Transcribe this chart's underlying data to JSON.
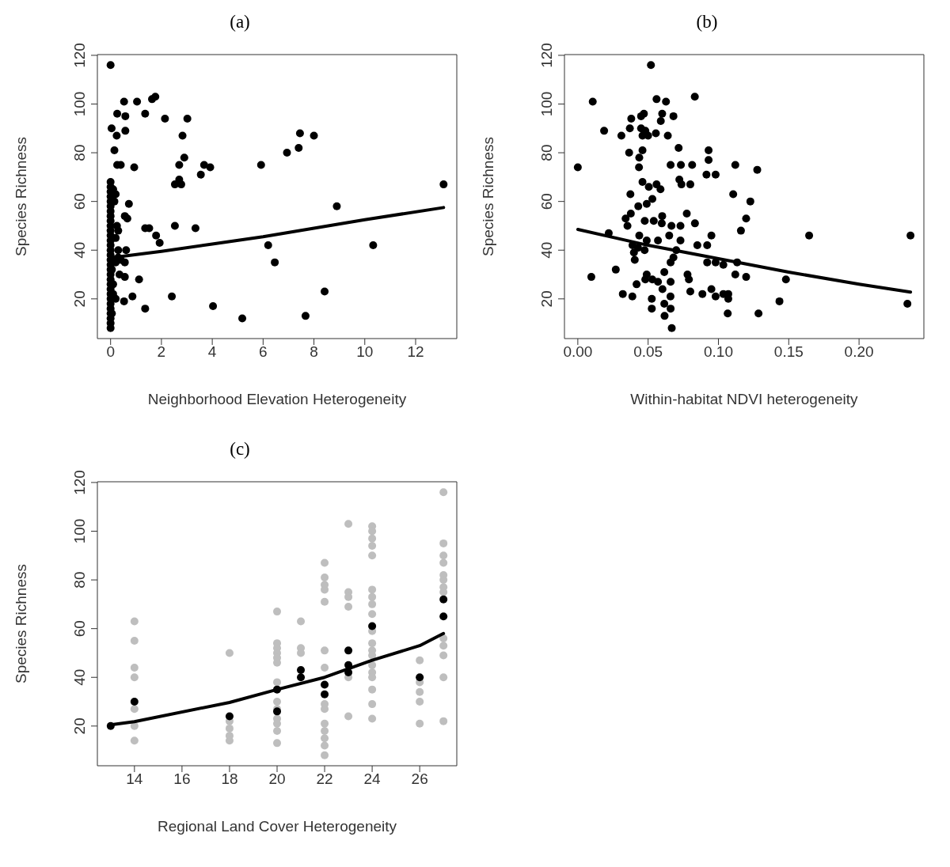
{
  "chart_data": [
    {
      "type": "scatter",
      "title": "(a)",
      "xlabel": "Neighborhood Elevation Heterogeneity",
      "ylabel": "Species Richness",
      "xlim": [
        -0.52,
        13.62
      ],
      "ylim": [
        3.7,
        120.3
      ],
      "xticks": [
        0,
        2,
        4,
        6,
        8,
        10,
        12
      ],
      "yticks": [
        20,
        40,
        60,
        80,
        100,
        120
      ],
      "marker": "circle",
      "series": [
        {
          "color": "#000000",
          "x": [
            0,
            0.53,
            1.04,
            1.63,
            1.76,
            1.36,
            0.26,
            0.58,
            2.14,
            3.02,
            0.04,
            0.58,
            0.24,
            2.83,
            0.15,
            7.45,
            8.0,
            7.4,
            6.94,
            2.9,
            0.26,
            0.4,
            0.93,
            2.7,
            3.68,
            3.92,
            3.55,
            5.92,
            2.53,
            2.7,
            2.78,
            13.1,
            0,
            0.72,
            8.9,
            0.56,
            0.66,
            2.53,
            1.36,
            1.52,
            3.34,
            1.79,
            1.93,
            6.2,
            10.33,
            6.46,
            0.61,
            0.56,
            0.56,
            1.12,
            0.86,
            2.41,
            8.42,
            0.53,
            1.36,
            4.03,
            5.18,
            7.67,
            0,
            0,
            0,
            0,
            0,
            0,
            0,
            0,
            0,
            0,
            0,
            0,
            0,
            0,
            0,
            0,
            0,
            0,
            0,
            0,
            0,
            0,
            0,
            0,
            0,
            0,
            0,
            0,
            0,
            0,
            0.1,
            0.2,
            0.15,
            0.3,
            0.25,
            0.2,
            0.3,
            0.2,
            0.35,
            0.1,
            0.2,
            0.05,
            0.3,
            0.4,
            0.1,
            0.05
          ],
          "values": [
            116,
            101,
            101,
            102,
            103,
            96,
            96,
            95,
            94,
            94,
            90,
            89,
            87,
            87,
            81,
            88,
            87,
            82,
            80,
            78,
            75,
            75,
            74,
            75,
            75,
            74,
            71,
            75,
            67,
            69,
            67,
            67,
            68,
            59,
            58,
            54,
            53,
            50,
            49,
            49,
            49,
            46,
            43,
            42,
            42,
            35,
            40,
            35,
            29,
            28,
            21,
            21,
            23,
            19,
            16,
            17,
            12,
            13,
            8,
            10,
            12,
            14,
            16,
            18,
            20,
            22,
            24,
            26,
            28,
            30,
            32,
            34,
            36,
            38,
            40,
            42,
            44,
            46,
            48,
            50,
            52,
            54,
            56,
            58,
            60,
            62,
            64,
            66,
            65,
            63,
            60,
            48,
            50,
            45,
            40,
            35,
            30,
            22,
            20,
            14,
            37,
            36,
            26,
            32
          ]
        },
        {
          "type": "line",
          "marker": "none",
          "color": "#000000",
          "x": [
            0.1,
            2,
            4,
            6,
            8,
            10,
            13.1
          ],
          "values": [
            37,
            39.5,
            42.5,
            45.5,
            49,
            52.5,
            57.5
          ]
        }
      ]
    },
    {
      "type": "scatter",
      "title": "(b)",
      "xlabel": "Within-habitat NDVI heterogeneity",
      "ylabel": "Species Richness",
      "xlim": [
        -0.0095,
        0.2461
      ],
      "ylim": [
        3.7,
        120.3
      ],
      "xticks": [
        {
          "value": 0,
          "label": "0.00"
        },
        {
          "value": 0.05,
          "label": "0.05"
        },
        {
          "value": 0.1,
          "label": "0.10"
        },
        {
          "value": 0.15,
          "label": "0.15"
        },
        {
          "value": 0.2,
          "label": "0.20"
        }
      ],
      "yticks": [
        20,
        40,
        60,
        80,
        100,
        120
      ],
      "marker": "circle",
      "series": [
        {
          "color": "#000000",
          "x": [
            0,
            0.0106,
            0.0187,
            0.031,
            0.052,
            0.056,
            0.0627,
            0.0832,
            0.038,
            0.045,
            0.047,
            0.06,
            0.068,
            0.059,
            0.037,
            0.045,
            0.048,
            0.046,
            0.05,
            0.0555,
            0.064,
            0.0717,
            0.093,
            0.093,
            0.0365,
            0.046,
            0.0437,
            0.0435,
            0.066,
            0.0733,
            0.0813,
            0.112,
            0.1276,
            0.0915,
            0.098,
            0.0722,
            0.0737,
            0.08,
            0.046,
            0.0505,
            0.056,
            0.0588,
            0.0374,
            0.1105,
            0.1227,
            0.049,
            0.053,
            0.043,
            0.0377,
            0.034,
            0.0353,
            0.0476,
            0.054,
            0.06,
            0.0597,
            0.0666,
            0.073,
            0.0775,
            0.0833,
            0.1197,
            0.116,
            0.022,
            0.0437,
            0.049,
            0.057,
            0.073,
            0.065,
            0.095,
            0.1645,
            0.2366,
            0.0389,
            0.0428,
            0.0475,
            0.085,
            0.092,
            0.0399,
            0.0405,
            0.07,
            0.068,
            0.066,
            0.092,
            0.098,
            0.1035,
            0.1133,
            0.0615,
            0.027,
            0.0096,
            0.049,
            0.048,
            0.053,
            0.057,
            0.066,
            0.078,
            0.079,
            0.112,
            0.1197,
            0.148,
            0.032,
            0.0388,
            0.0418,
            0.0602,
            0.08,
            0.0886,
            0.095,
            0.098,
            0.1035,
            0.107,
            0.107,
            0.0526,
            0.0526,
            0.0615,
            0.0659,
            0.066,
            0.0617,
            0.1066,
            0.1285,
            0.1434,
            0.2344,
            0.0668
          ],
          "values": [
            74,
            101,
            89,
            87,
            116,
            102,
            101,
            103,
            94,
            95,
            96,
            96,
            95,
            93,
            90,
            90,
            89,
            87,
            87,
            88,
            87,
            82,
            81,
            77,
            80,
            81,
            78,
            74,
            75,
            75,
            75,
            75,
            73,
            71,
            71,
            69,
            67,
            67,
            68,
            66,
            67,
            65,
            63,
            63,
            60,
            59,
            61,
            58,
            55,
            53,
            50,
            52,
            52,
            54,
            51,
            50,
            50,
            55,
            51,
            53,
            48,
            47,
            46,
            44,
            44,
            44,
            46,
            46,
            46,
            46,
            42,
            41,
            40,
            42,
            42,
            39,
            36,
            40,
            37,
            35,
            35,
            35,
            34,
            35,
            31,
            32,
            29,
            30,
            28,
            28,
            27,
            27,
            30,
            28,
            30,
            29,
            28,
            22,
            21,
            26,
            24,
            23,
            22,
            24,
            21,
            22,
            22,
            20,
            20,
            16,
            18,
            21,
            16,
            13,
            14,
            14,
            19,
            18,
            8
          ]
        },
        {
          "type": "line",
          "marker": "none",
          "color": "#000000",
          "x": [
            0,
            0.05,
            0.1,
            0.15,
            0.2,
            0.2366
          ],
          "values": [
            48.5,
            42,
            36.5,
            31,
            26,
            22.8
          ]
        }
      ]
    },
    {
      "type": "scatter",
      "title": "(c)",
      "xlabel": "Regional Land Cover Heterogeneity",
      "ylabel": "Species Richness",
      "xlim": [
        12.44,
        27.56
      ],
      "ylim": [
        3.7,
        120.3
      ],
      "xticks": [
        14,
        16,
        18,
        20,
        22,
        24,
        26
      ],
      "yticks": [
        20,
        40,
        60,
        80,
        100,
        120
      ],
      "marker": "circle",
      "series": [
        {
          "color": "#bebebe",
          "x": [
            14,
            14,
            14,
            14,
            14,
            14,
            14,
            18,
            18,
            18,
            18,
            18,
            20,
            20,
            20,
            20,
            20,
            20,
            20,
            20,
            20,
            20,
            20,
            20,
            20,
            21,
            21,
            21,
            22,
            22,
            22,
            22,
            22,
            22,
            22,
            22,
            22,
            22,
            22,
            22,
            22,
            22,
            23,
            23,
            23,
            23,
            23,
            23,
            24,
            24,
            24,
            24,
            24,
            24,
            24,
            24,
            24,
            24,
            24,
            24,
            24,
            24,
            24,
            24,
            24,
            24,
            24,
            26,
            26,
            26,
            26,
            26,
            27,
            27,
            27,
            27,
            27,
            27,
            27,
            27,
            27,
            27,
            27,
            27,
            27
          ],
          "values": [
            63,
            55,
            44,
            40,
            27,
            20,
            14,
            50,
            22,
            19,
            16,
            14,
            67,
            54,
            52,
            50,
            48,
            46,
            30,
            27,
            23,
            18,
            13,
            21,
            38,
            63,
            52,
            50,
            87,
            81,
            78,
            76,
            71,
            51,
            44,
            27,
            21,
            18,
            15,
            12,
            8,
            29,
            103,
            75,
            73,
            69,
            40,
            24,
            102,
            100,
            97,
            94,
            90,
            76,
            73,
            70,
            66,
            59,
            54,
            51,
            49,
            45,
            42,
            40,
            35,
            29,
            23,
            47,
            38,
            34,
            30,
            21,
            116,
            95,
            90,
            87,
            82,
            80,
            77,
            75,
            56,
            53,
            49,
            40,
            22
          ]
        },
        {
          "color": "#000000",
          "x": [
            13,
            14,
            18,
            20,
            20,
            21,
            21,
            22,
            22,
            23,
            23,
            23,
            24,
            26,
            27,
            27
          ],
          "values": [
            20,
            30,
            24,
            35,
            26,
            43,
            40,
            37,
            33,
            51,
            45,
            42,
            61,
            40,
            72,
            65
          ]
        },
        {
          "type": "line",
          "marker": "none",
          "color": "#000000",
          "x": [
            13,
            14,
            18,
            20,
            22,
            24,
            26,
            27
          ],
          "values": [
            20.5,
            21.8,
            29.7,
            35,
            40,
            47,
            53,
            58
          ]
        }
      ]
    }
  ]
}
